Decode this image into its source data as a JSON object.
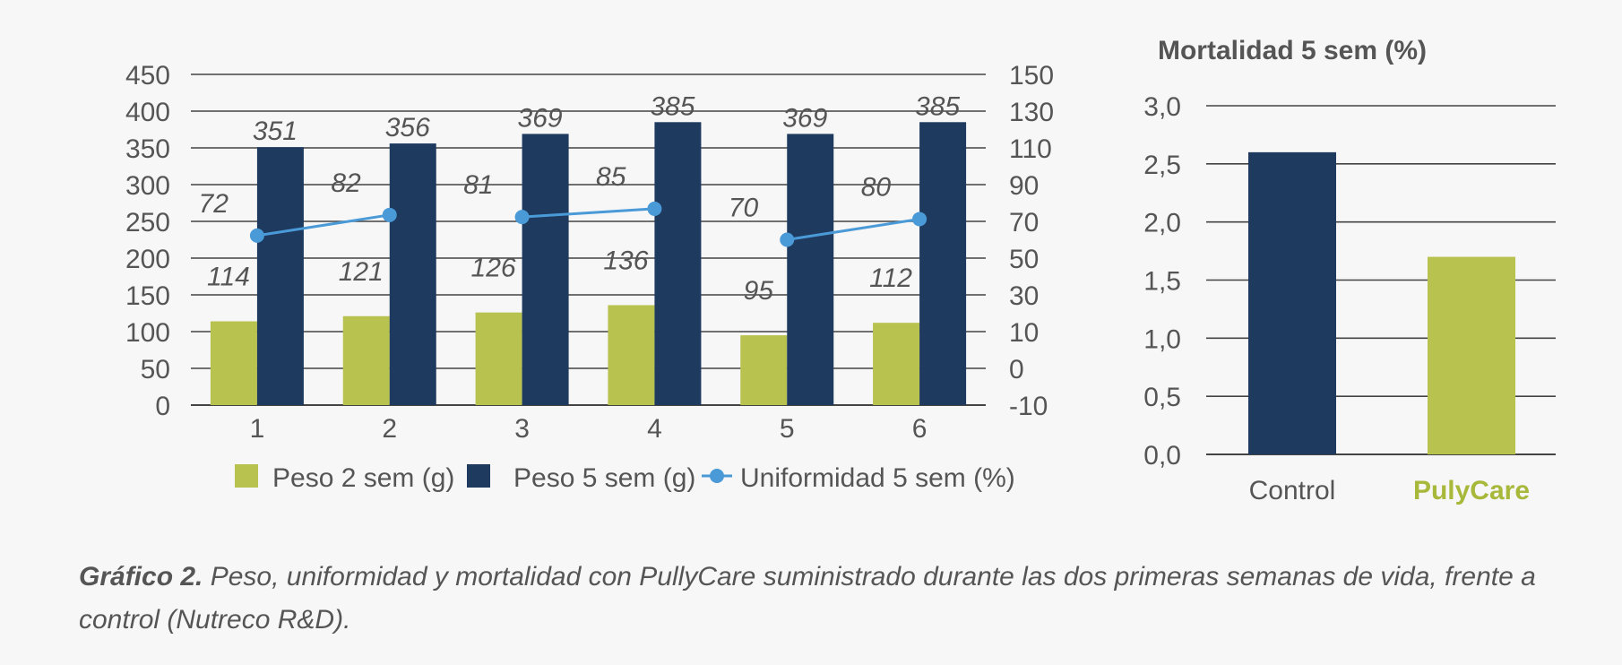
{
  "chart_data": [
    {
      "type": "bar",
      "categories": [
        "1",
        "2",
        "3",
        "4",
        "5",
        "6"
      ],
      "series": [
        {
          "name": "Peso 2 sem (g)",
          "kind": "bar",
          "axis": "left",
          "color": "#b8c24e",
          "values": [
            114,
            121,
            126,
            136,
            95,
            112
          ]
        },
        {
          "name": "Peso 5 sem (g)",
          "kind": "bar",
          "axis": "left",
          "color": "#1e3a5f",
          "values": [
            351,
            356,
            369,
            385,
            369,
            385
          ]
        },
        {
          "name": "Uniformidad 5 sem (%)",
          "kind": "line",
          "axis": "right",
          "color": "#4a9ad8",
          "values": [
            72,
            82,
            81,
            85,
            70,
            80
          ],
          "line_segments": [
            [
              0,
              1
            ],
            [
              2,
              3
            ],
            [
              4,
              5
            ]
          ]
        }
      ],
      "ylim": [
        0,
        450
      ],
      "yticks": [
        "0",
        "50",
        "100",
        "150",
        "200",
        "250",
        "300",
        "350",
        "400",
        "450"
      ],
      "y2lim": [
        -10,
        150
      ],
      "y2ticks": [
        "-10",
        "0",
        "10",
        "30",
        "50",
        "70",
        "90",
        "110",
        "130",
        "150"
      ],
      "grid": true,
      "legend": "bottom"
    },
    {
      "type": "bar",
      "title": "Mortalidad 5 sem (%)",
      "categories": [
        "Control",
        "PulyCare"
      ],
      "values": [
        2.6,
        1.7
      ],
      "colors": [
        "#1e3a5f",
        "#b8c24e"
      ],
      "category_label_colors": [
        "#555555",
        "#a8b83a"
      ],
      "ylim": [
        0,
        3
      ],
      "yticks": [
        "0,0",
        "0,5",
        "1,0",
        "1,5",
        "2,0",
        "2,5",
        "3,0"
      ],
      "grid": true
    }
  ],
  "caption": {
    "label": "Gráfico 2.",
    "text": " Peso, uniformidad y mortalidad con PullyCare suministrado durante las dos primeras semanas de vida, frente a control (Nutreco R&D)."
  }
}
